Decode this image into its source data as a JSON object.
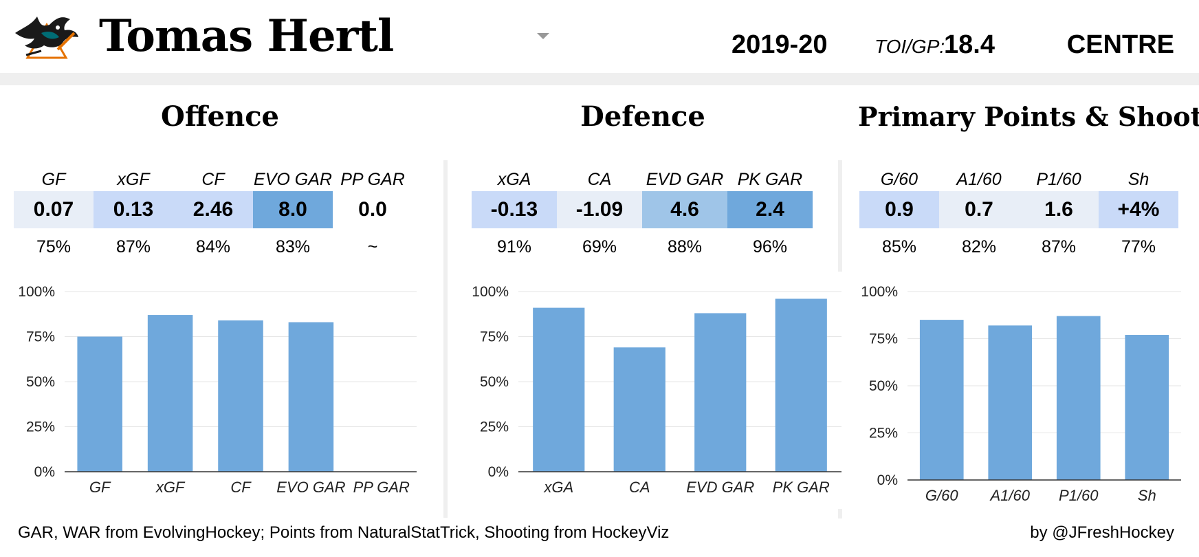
{
  "header": {
    "player_name": "Tomas Hertl",
    "season": "2019-20",
    "toi_label": "TOI/GP:",
    "toi_value": "18.4",
    "position": "CENTRE"
  },
  "colors": {
    "bar": "#6fa8dc",
    "cell_dark": "#6fa8dc",
    "cell_mid": "#9fc5e8",
    "cell_light": "#c9daf8",
    "cell_pale": "#e8eef7",
    "band": "#efefef"
  },
  "sections": [
    {
      "title": "Offence",
      "stats": [
        {
          "label": "GF",
          "value": "0.07",
          "pct": "75%",
          "shade": "cell_pale"
        },
        {
          "label": "xGF",
          "value": "0.13",
          "pct": "87%",
          "shade": "cell_light"
        },
        {
          "label": "CF",
          "value": "2.46",
          "pct": "84%",
          "shade": "cell_light"
        },
        {
          "label": "EVO GAR",
          "value": "8.0",
          "pct": "83%",
          "shade": "cell_dark"
        },
        {
          "label": "PP GAR",
          "value": "0.0",
          "pct": "~",
          "shade": "none"
        }
      ]
    },
    {
      "title": "Defence",
      "stats": [
        {
          "label": "xGA",
          "value": "-0.13",
          "pct": "91%",
          "shade": "cell_light"
        },
        {
          "label": "CA",
          "value": "-1.09",
          "pct": "69%",
          "shade": "cell_pale"
        },
        {
          "label": "EVD GAR",
          "value": "4.6",
          "pct": "88%",
          "shade": "cell_mid"
        },
        {
          "label": "PK GAR",
          "value": "2.4",
          "pct": "96%",
          "shade": "cell_dark"
        }
      ]
    },
    {
      "title": "Primary Points & Shooting",
      "stats": [
        {
          "label": "G/60",
          "value": "0.9",
          "pct": "85%",
          "shade": "cell_light"
        },
        {
          "label": "A1/60",
          "value": "0.7",
          "pct": "82%",
          "shade": "cell_pale"
        },
        {
          "label": "P1/60",
          "value": "1.6",
          "pct": "87%",
          "shade": "cell_pale"
        },
        {
          "label": "Sh",
          "value": "+4%",
          "pct": "77%",
          "shade": "cell_light"
        }
      ]
    }
  ],
  "chart_data": [
    {
      "type": "bar",
      "title": "",
      "xlabel": "",
      "ylabel": "",
      "ylim": [
        0,
        100
      ],
      "yticks": [
        "0%",
        "25%",
        "50%",
        "75%",
        "100%"
      ],
      "categories": [
        "GF",
        "xGF",
        "CF",
        "EVO GAR",
        "PP GAR"
      ],
      "values": [
        75,
        87,
        84,
        83,
        null
      ],
      "grid": true
    },
    {
      "type": "bar",
      "title": "",
      "xlabel": "",
      "ylabel": "",
      "ylim": [
        0,
        100
      ],
      "yticks": [
        "0%",
        "25%",
        "50%",
        "75%",
        "100%"
      ],
      "categories": [
        "xGA",
        "CA",
        "EVD GAR",
        "PK GAR"
      ],
      "values": [
        91,
        69,
        88,
        96
      ],
      "grid": true
    },
    {
      "type": "bar",
      "title": "",
      "xlabel": "",
      "ylabel": "",
      "ylim": [
        0,
        100
      ],
      "yticks": [
        "0%",
        "25%",
        "50%",
        "75%",
        "100%"
      ],
      "categories": [
        "G/60",
        "A1/60",
        "P1/60",
        "Sh"
      ],
      "values": [
        85,
        82,
        87,
        77
      ],
      "grid": true
    }
  ],
  "footer": {
    "sources": "GAR, WAR from EvolvingHockey; Points from NaturalStatTrick, Shooting from HockeyViz",
    "credit": "by @JFreshHockey"
  }
}
